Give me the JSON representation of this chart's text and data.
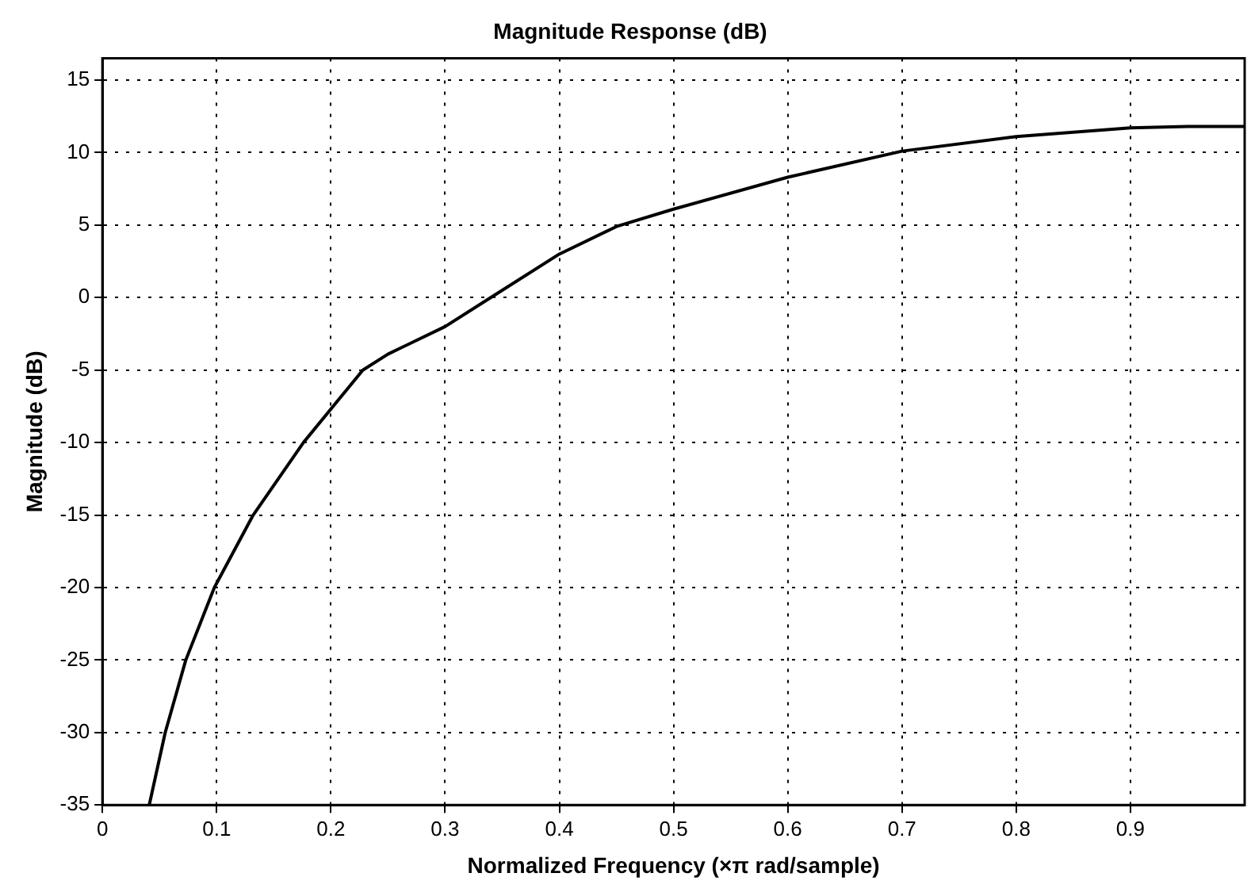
{
  "chart_data": {
    "type": "line",
    "title": "Magnitude Response (dB)",
    "xlabel": "Normalized Frequency (×π rad/sample)",
    "ylabel": "Magnitude (dB)",
    "x": [
      0.041,
      0.055,
      0.073,
      0.098,
      0.132,
      0.176,
      0.228,
      0.25,
      0.3,
      0.34,
      0.4,
      0.45,
      0.5,
      0.6,
      0.7,
      0.8,
      0.9,
      0.95,
      1.0
    ],
    "series": [
      {
        "color": "#000000",
        "values": [
          -35,
          -30,
          -25,
          -20,
          -15,
          -10,
          -5,
          -3.9,
          -2,
          0,
          3,
          4.9,
          6.1,
          8.3,
          10.1,
          11.1,
          11.7,
          11.8,
          11.8
        ]
      }
    ],
    "xlim": [
      0,
      1
    ],
    "xticks": [
      0,
      0.1,
      0.2,
      0.3,
      0.4,
      0.5,
      0.6,
      0.7,
      0.8,
      0.9
    ],
    "ylim": [
      -35,
      16.5
    ],
    "yticks": [
      -35,
      -30,
      -25,
      -20,
      -15,
      -10,
      -5,
      0,
      5,
      10,
      15
    ],
    "grid": true,
    "legend": false,
    "marker": "none",
    "line_style": "solid"
  }
}
